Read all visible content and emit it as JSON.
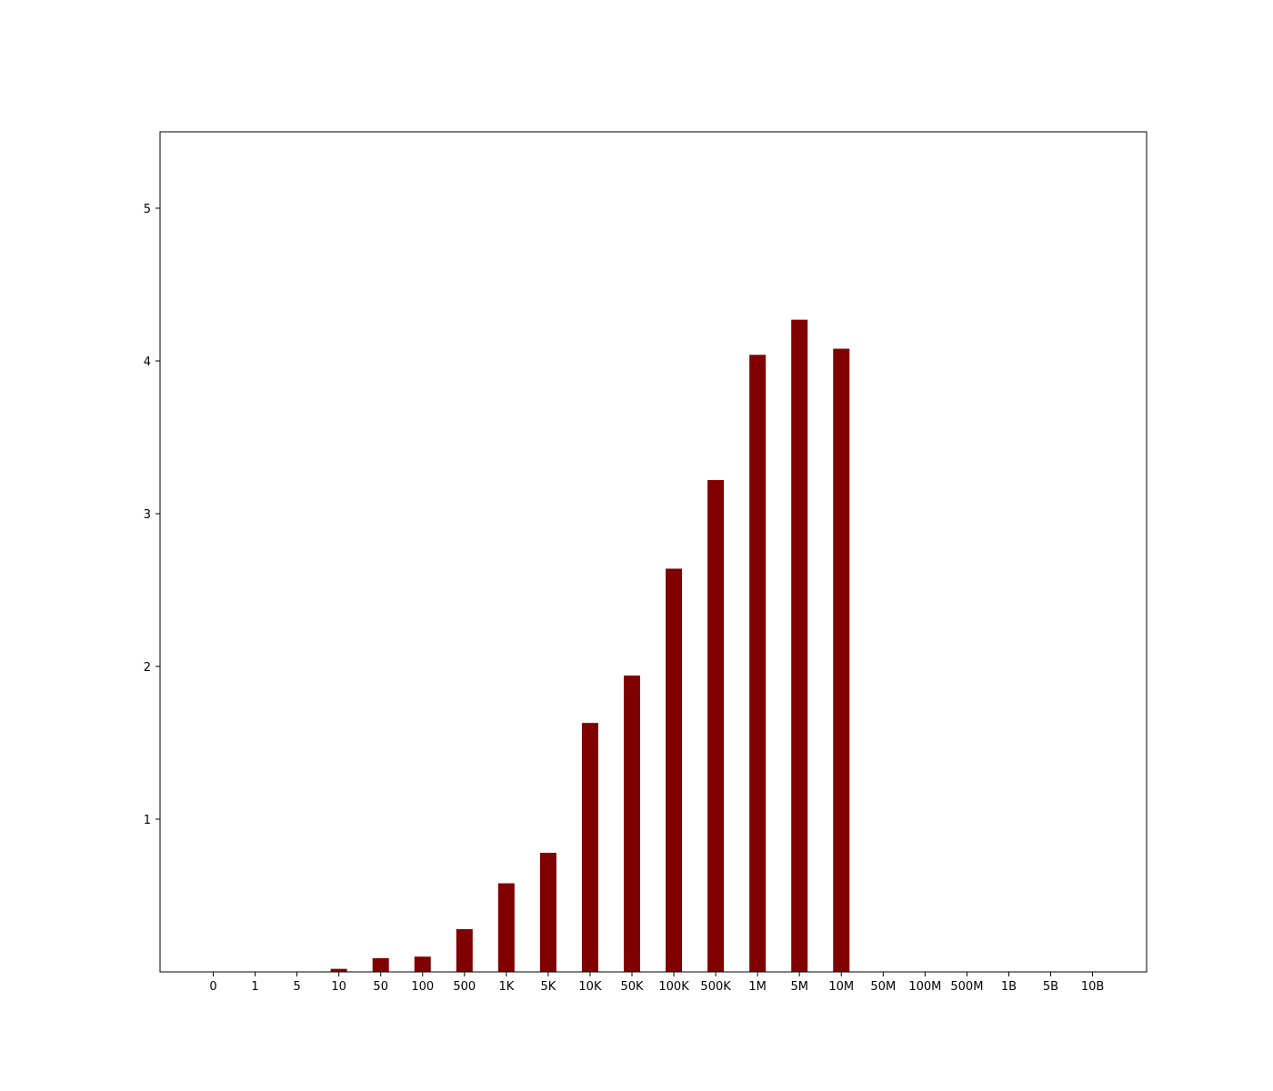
{
  "chart_data": {
    "type": "bar",
    "title": "",
    "xlabel": "",
    "ylabel": "",
    "categories": [
      "0",
      "1",
      "5",
      "10",
      "50",
      "100",
      "500",
      "1K",
      "5K",
      "10K",
      "50K",
      "100K",
      "500K",
      "1M",
      "5M",
      "10M",
      "50M",
      "100M",
      "500M",
      "1B",
      "5B",
      "10B"
    ],
    "values": [
      0,
      0,
      0,
      0.02,
      0.09,
      0.1,
      0.28,
      0.58,
      0.78,
      1.63,
      1.94,
      2.64,
      3.22,
      4.04,
      4.27,
      4.08,
      0,
      0,
      0,
      0,
      0,
      0
    ],
    "yticks": [
      1,
      2,
      3,
      4,
      5
    ],
    "ylim": [
      0,
      5.5
    ],
    "grid": false,
    "legend": "none",
    "bar_color": "#800000"
  }
}
